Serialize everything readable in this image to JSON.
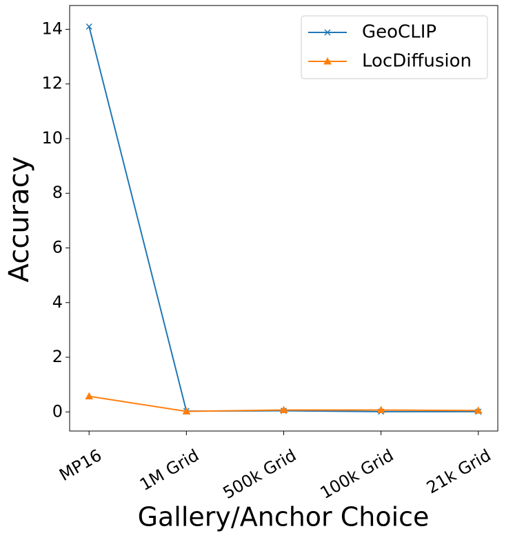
{
  "chart_data": {
    "type": "line",
    "xlabel": "Gallery/Anchor Choice",
    "ylabel": "Accuracy",
    "categories": [
      "MP16",
      "1M Grid",
      "500k Grid",
      "100k Grid",
      "21k Grid"
    ],
    "series": [
      {
        "name": "GeoCLIP",
        "color": "#1f77b4",
        "marker": "x",
        "values": [
          14.1,
          0.03,
          0.04,
          0.01,
          0.01
        ]
      },
      {
        "name": "LocDiffusion",
        "color": "#ff7f0e",
        "marker": "^",
        "values": [
          0.57,
          0.02,
          0.07,
          0.07,
          0.05
        ]
      }
    ],
    "ylim": [
      -0.7,
      14.87
    ],
    "yticks": [
      0,
      2,
      4,
      6,
      8,
      10,
      12,
      14
    ],
    "legend": "upper right",
    "grid": false
  }
}
